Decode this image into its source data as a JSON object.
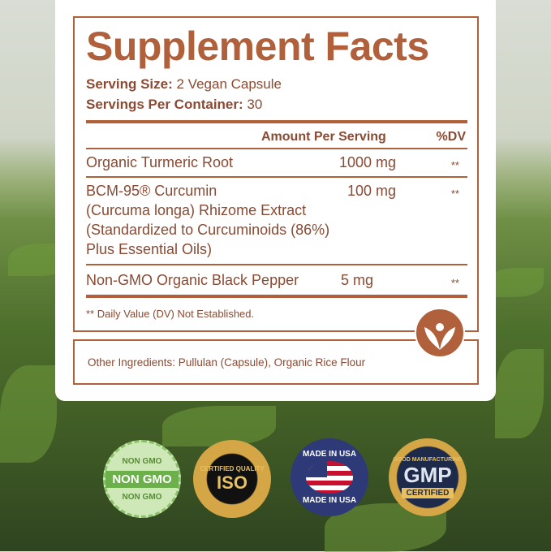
{
  "panel": {
    "title": "Supplement Facts",
    "serving_size_label": "Serving Size:",
    "serving_size_value": "2 Vegan Capsule",
    "servings_label": "Servings Per Container:",
    "servings_value": "30",
    "header_amount": "Amount Per Serving",
    "header_dv": "%DV",
    "rows": [
      {
        "name": "Organic Turmeric Root",
        "amount": "1000 mg",
        "dv": "**"
      },
      {
        "name": "BCM-95® Curcumin",
        "lines": [
          "(Curcuma longa) Rhizome Extract",
          "(Standardized to Curcuminoids (86%)",
          "Plus Essential Oils)"
        ],
        "amount": "100 mg",
        "dv": "**"
      },
      {
        "name": "Non-GMO Organic Black Pepper",
        "amount": "5 mg",
        "dv": "**"
      }
    ],
    "footnote": "** Daily Value (DV) Not Established.",
    "other_ingredients": "Other Ingredients: Pullulan (Capsule), Organic Rice Flour"
  },
  "badges": [
    {
      "name": "non-gmo",
      "text": "NON GMO",
      "ring": "NON GMO"
    },
    {
      "name": "iso",
      "text": "ISO",
      "ring": "CERTIFIED QUALITY"
    },
    {
      "name": "usa",
      "text": "MADE IN USA"
    },
    {
      "name": "gmp",
      "text": "GMP",
      "ring": "GOOD MANUFACTURING",
      "sub": "CERTIFIED"
    }
  ],
  "colors": {
    "accent": "#b0613c",
    "text": "#8a4a33"
  }
}
